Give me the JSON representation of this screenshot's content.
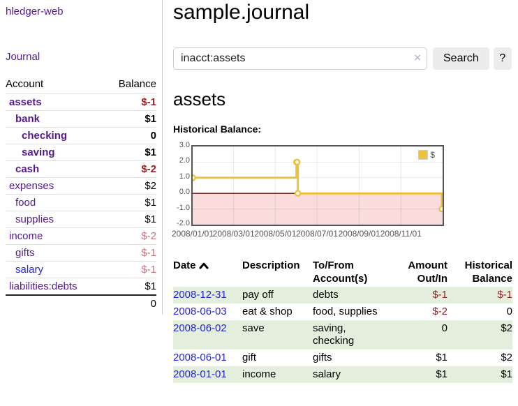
{
  "app": {
    "brand": "hledger-web",
    "nav": {
      "journal": "Journal"
    }
  },
  "colors": {
    "link_visited_purple": "#551A8B",
    "link_blue": "#2323dd",
    "negative_strong": "#9a2021",
    "negative_light": "#c4737e",
    "row_green": "#e3efdc",
    "chart_gold": "#edc240",
    "chart_border_gray": "#545454",
    "zero_line_red": "#8b0000",
    "negative_region_pink": "#fadcdc",
    "button_gray": "#ececec"
  },
  "sidebar": {
    "headers": {
      "account": "Account",
      "balance": "Balance"
    },
    "accounts": [
      {
        "name": "assets",
        "indent": 1,
        "in_query": true,
        "balance": "$-1",
        "negative": true,
        "visited": true
      },
      {
        "name": "bank",
        "indent": 2,
        "in_query": true,
        "balance": "$1",
        "negative": false,
        "visited": true
      },
      {
        "name": "checking",
        "indent": 3,
        "in_query": true,
        "balance": "0",
        "negative": false,
        "visited": true
      },
      {
        "name": "saving",
        "indent": 3,
        "in_query": true,
        "balance": "$1",
        "negative": false,
        "visited": true
      },
      {
        "name": "cash",
        "indent": 2,
        "in_query": true,
        "balance": "$-2",
        "negative": true,
        "visited": true
      },
      {
        "name": "expenses",
        "indent": 1,
        "in_query": false,
        "balance": "$2",
        "negative": false,
        "visited": true
      },
      {
        "name": "food",
        "indent": 2,
        "in_query": false,
        "balance": "$1",
        "negative": false,
        "visited": true
      },
      {
        "name": "supplies",
        "indent": 2,
        "in_query": false,
        "balance": "$1",
        "negative": false,
        "visited": true
      },
      {
        "name": "income",
        "indent": 1,
        "in_query": false,
        "balance": "$-2",
        "negative": true,
        "visited": true
      },
      {
        "name": "gifts",
        "indent": 2,
        "in_query": false,
        "balance": "$-1",
        "negative": true,
        "visited": true
      },
      {
        "name": "salary",
        "indent": 2,
        "in_query": false,
        "balance": "$-1",
        "negative": true,
        "visited": false
      },
      {
        "name": "liabilities:debts",
        "indent": 1,
        "in_query": false,
        "balance": "$1",
        "negative": false,
        "visited": true
      }
    ],
    "total": "0"
  },
  "header": {
    "title": "sample.journal"
  },
  "search": {
    "value": "inacct:assets",
    "clear_label": "×",
    "button_label": "Search",
    "help_label": "?"
  },
  "account_page": {
    "heading": "assets",
    "chart_title": "Historical Balance:"
  },
  "chart_data": {
    "type": "line",
    "subtype": "step",
    "title": "Historical Balance:",
    "series": [
      {
        "name": "$",
        "color": "#edc240",
        "points": [
          [
            "2008-01-01",
            1
          ],
          [
            "2008-06-01",
            2
          ],
          [
            "2008-06-02",
            2
          ],
          [
            "2008-06-03",
            0
          ],
          [
            "2008-12-31",
            -1
          ]
        ]
      }
    ],
    "xrange": [
      "2008-01-01",
      "2008-12-31"
    ],
    "ylim": [
      -2,
      3
    ],
    "y_ticks": [
      3.0,
      2.0,
      1.0,
      0.0,
      -1.0,
      -2.0
    ],
    "x_ticks": [
      "2008/01/01",
      "2008/03/01",
      "2008/05/01",
      "2008/07/01",
      "2008/09/01",
      "2008/11/01"
    ],
    "grid": true,
    "legend_position": "top-right",
    "zero_line": true,
    "negative_region_shaded": true
  },
  "register": {
    "headers": [
      "Date",
      "Description",
      "To/From Account(s)",
      "Amount Out/In",
      "Historical Balance"
    ],
    "sort": {
      "column": "Date",
      "direction": "ascending"
    },
    "rows": [
      {
        "date": "2008-12-31",
        "description": "pay off",
        "accounts": "debts",
        "amount": "$-1",
        "amount_negative": true,
        "balance": "$-1",
        "balance_negative": true
      },
      {
        "date": "2008-06-03",
        "description": "eat & shop",
        "accounts": "food, supplies",
        "amount": "$-2",
        "amount_negative": true,
        "balance": "0",
        "balance_negative": false
      },
      {
        "date": "2008-06-02",
        "description": "save",
        "accounts": "saving, checking",
        "amount": "0",
        "amount_negative": false,
        "balance": "$2",
        "balance_negative": false
      },
      {
        "date": "2008-06-01",
        "description": "gift",
        "accounts": "gifts",
        "amount": "$1",
        "amount_negative": false,
        "balance": "$2",
        "balance_negative": false
      },
      {
        "date": "2008-01-01",
        "description": "income",
        "accounts": "salary",
        "amount": "$1",
        "amount_negative": false,
        "balance": "$1",
        "balance_negative": false
      }
    ]
  }
}
